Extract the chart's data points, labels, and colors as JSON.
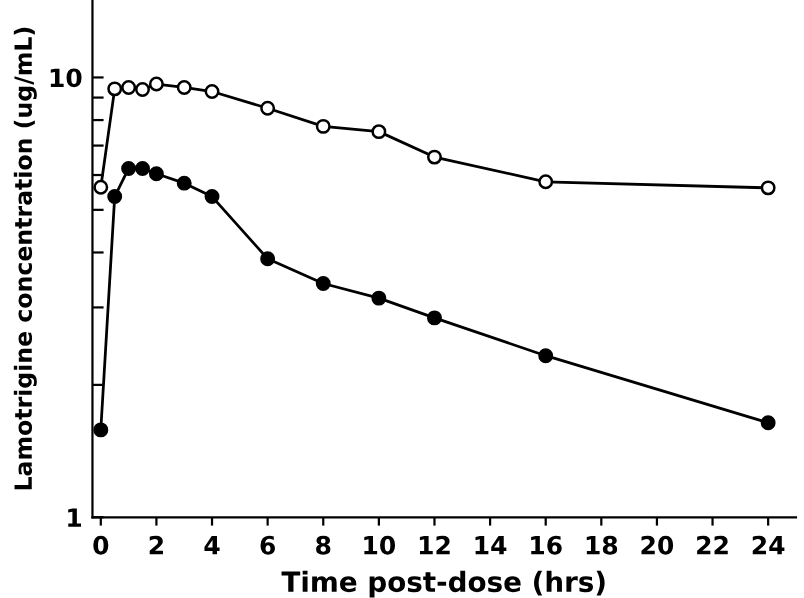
{
  "chart_data": {
    "type": "line",
    "xlabel": "Time post-dose (hrs)",
    "ylabel": "Lamotrigine concentration (ug/mL)",
    "x": [
      0,
      0.5,
      1,
      1.5,
      2,
      3,
      4,
      6,
      8,
      10,
      12,
      16,
      24
    ],
    "series": [
      {
        "color": "#000000",
        "colors": [
          "#ffffff",
          "#ffffff",
          "#ffffff",
          "#ffffff",
          "#ffffff",
          "#ffffff",
          "#ffffff",
          "#ffffff",
          "#ffffff",
          "#ffffff",
          "#ffffff",
          "#ffffff",
          "#ffffff"
        ],
        "values": [
          5.63,
          9.42,
          9.49,
          9.39,
          9.66,
          9.49,
          9.29,
          8.51,
          7.74,
          7.53,
          6.59,
          5.79,
          5.61
        ]
      },
      {
        "color": "#000000",
        "values": [
          1.58,
          5.36,
          6.21,
          6.21,
          6.04,
          5.75,
          5.36,
          3.87,
          3.4,
          3.15,
          2.84,
          2.33,
          1.64
        ]
      }
    ],
    "log": "y",
    "xlim": [
      -0.3,
      25
    ],
    "ylim": [
      1,
      15
    ],
    "xticks": [
      0,
      2,
      4,
      6,
      8,
      10,
      12,
      14,
      16,
      18,
      20,
      22,
      24
    ],
    "yticks": [
      1,
      {
        "value": 2,
        "label": null
      },
      {
        "value": 3,
        "label": null
      },
      {
        "value": 4,
        "label": null
      },
      {
        "value": 5,
        "label": null
      },
      {
        "value": 6,
        "label": null
      },
      {
        "value": 7,
        "label": null
      },
      {
        "value": 8,
        "label": null
      },
      {
        "value": 9,
        "label": null
      },
      10
    ],
    "grid": false,
    "marker": "circle",
    "line_style": "solid"
  }
}
